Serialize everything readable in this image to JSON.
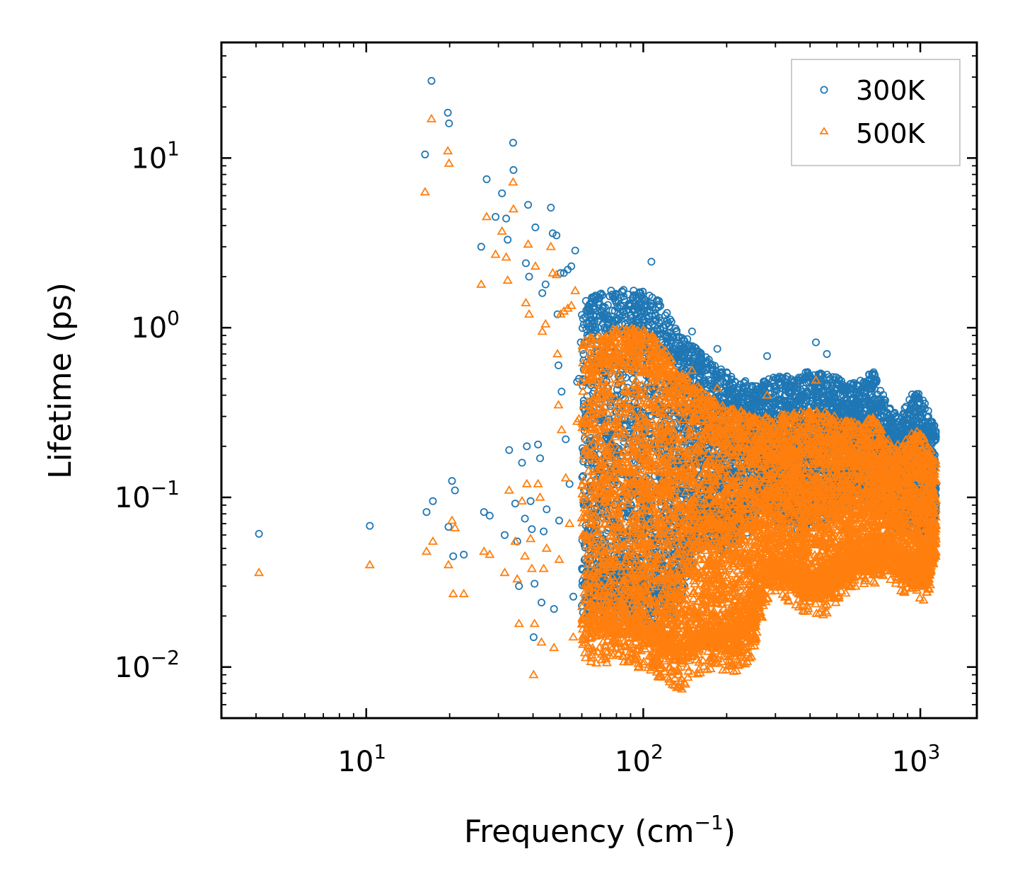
{
  "chart_data": {
    "type": "scatter",
    "xscale": "log",
    "yscale": "log",
    "xlabel": "Frequency (cm",
    "xlabel_sup": "−1",
    "xlabel_end": ")",
    "ylabel": "Lifetime (ps)",
    "xlim": [
      3.0,
      1600
    ],
    "ylim": [
      0.005,
      48
    ],
    "x_ticks": [
      {
        "value": 10,
        "base": "10",
        "exp": "1"
      },
      {
        "value": 100,
        "base": "10",
        "exp": "2"
      },
      {
        "value": 1000,
        "base": "10",
        "exp": "3"
      }
    ],
    "y_ticks": [
      {
        "value": 0.01,
        "base": "10",
        "exp": "−2"
      },
      {
        "value": 0.1,
        "base": "10",
        "exp": "−1"
      },
      {
        "value": 1,
        "base": "10",
        "exp": "0"
      },
      {
        "value": 10,
        "base": "10",
        "exp": "1"
      }
    ],
    "legend_position": "top-right",
    "series": [
      {
        "name": "300K",
        "marker": "circle",
        "color": "#1f77b4",
        "points": [
          [
            4.1,
            0.061
          ],
          [
            10.3,
            0.068
          ],
          [
            16.3,
            10.5
          ],
          [
            16.5,
            0.082
          ],
          [
            17.2,
            28.5
          ],
          [
            17.4,
            0.095
          ],
          [
            19.7,
            18.5
          ],
          [
            19.8,
            0.067
          ],
          [
            19.9,
            16.0
          ],
          [
            20.4,
            0.125
          ],
          [
            20.6,
            0.045
          ],
          [
            20.9,
            0.11
          ],
          [
            22.5,
            0.046
          ],
          [
            26.0,
            3.0
          ],
          [
            26.6,
            0.082
          ],
          [
            27.2,
            7.5
          ],
          [
            27.9,
            0.078
          ],
          [
            29.3,
            4.5
          ],
          [
            30.9,
            6.2
          ],
          [
            31.6,
            0.06
          ],
          [
            32.0,
            4.4
          ],
          [
            32.4,
            3.3
          ],
          [
            32.8,
            0.19
          ],
          [
            33.9,
            12.3
          ],
          [
            34.0,
            8.5
          ],
          [
            34.5,
            0.092
          ],
          [
            35.1,
            0.055
          ],
          [
            35.6,
            0.03
          ],
          [
            36.5,
            0.16
          ],
          [
            37.4,
            0.075
          ],
          [
            37.7,
            2.4
          ],
          [
            38.0,
            0.2
          ],
          [
            38.4,
            5.3
          ],
          [
            38.7,
            2.0
          ],
          [
            39.2,
            0.095
          ],
          [
            39.6,
            0.065
          ],
          [
            40.2,
            0.015
          ],
          [
            40.5,
            0.031
          ],
          [
            40.8,
            3.9
          ],
          [
            41.7,
            0.205
          ],
          [
            42.4,
            0.17
          ],
          [
            42.9,
            0.024
          ],
          [
            43.2,
            1.6
          ],
          [
            43.7,
            0.063
          ],
          [
            44.4,
            1.8
          ],
          [
            44.8,
            0.085
          ],
          [
            46.4,
            5.1
          ],
          [
            47.1,
            3.6
          ],
          [
            47.6,
            0.022
          ],
          [
            48.6,
            3.5
          ],
          [
            49.0,
            1.2
          ],
          [
            49.4,
            0.6
          ],
          [
            49.7,
            0.073
          ],
          [
            50.3,
            2.1
          ],
          [
            50.7,
            0.42
          ],
          [
            51.7,
            2.1
          ],
          [
            52.5,
            0.22
          ],
          [
            53.4,
            2.2
          ],
          [
            54.2,
            0.12
          ],
          [
            55.0,
            2.3
          ],
          [
            55.9,
            0.026
          ],
          [
            56.8,
            2.85
          ],
          [
            57.7,
            0.48
          ],
          [
            58.6,
            0.5
          ],
          [
            59.5,
            0.82
          ]
        ],
        "band": [
          [
            60,
            0.021,
            1.45
          ],
          [
            70,
            0.019,
            1.6
          ],
          [
            80,
            0.018,
            1.7
          ],
          [
            90,
            0.017,
            1.7
          ],
          [
            100,
            0.016,
            1.65
          ],
          [
            110,
            0.015,
            1.55
          ],
          [
            120,
            0.017,
            1.3
          ],
          [
            130,
            0.02,
            1.05
          ],
          [
            140,
            0.028,
            0.9
          ],
          [
            160,
            0.05,
            0.72
          ],
          [
            180,
            0.05,
            0.62
          ],
          [
            200,
            0.045,
            0.55
          ],
          [
            220,
            0.05,
            0.52
          ],
          [
            250,
            0.07,
            0.45
          ],
          [
            280,
            0.075,
            0.5
          ],
          [
            320,
            0.06,
            0.53
          ],
          [
            380,
            0.06,
            0.55
          ],
          [
            450,
            0.07,
            0.55
          ],
          [
            520,
            0.08,
            0.5
          ],
          [
            600,
            0.09,
            0.5
          ],
          [
            680,
            0.08,
            0.55
          ],
          [
            760,
            0.07,
            0.35
          ],
          [
            850,
            0.06,
            0.3
          ],
          [
            950,
            0.06,
            0.45
          ],
          [
            1050,
            0.05,
            0.35
          ],
          [
            1140,
            0.07,
            0.27
          ]
        ],
        "band_extra": [
          [
            107,
            2.45
          ],
          [
            420,
            0.82
          ],
          [
            460,
            0.7
          ],
          [
            280,
            0.68
          ],
          [
            185,
            0.75
          ],
          [
            150,
            0.95
          ]
        ]
      },
      {
        "name": "500K",
        "marker": "triangle",
        "color": "#ff7f0e",
        "points": [
          [
            4.1,
            0.036
          ],
          [
            10.3,
            0.04
          ],
          [
            16.3,
            6.3
          ],
          [
            16.5,
            0.048
          ],
          [
            17.2,
            17.0
          ],
          [
            17.4,
            0.055
          ],
          [
            19.7,
            11.0
          ],
          [
            19.8,
            0.04
          ],
          [
            19.9,
            9.3
          ],
          [
            20.4,
            0.073
          ],
          [
            20.6,
            0.027
          ],
          [
            20.9,
            0.066
          ],
          [
            22.5,
            0.027
          ],
          [
            26.0,
            1.8
          ],
          [
            26.6,
            0.048
          ],
          [
            27.2,
            4.5
          ],
          [
            27.9,
            0.046
          ],
          [
            29.3,
            2.7
          ],
          [
            30.9,
            3.7
          ],
          [
            31.6,
            0.036
          ],
          [
            32.0,
            2.6
          ],
          [
            32.4,
            1.9
          ],
          [
            32.8,
            0.11
          ],
          [
            33.9,
            7.2
          ],
          [
            34.0,
            5.0
          ],
          [
            34.5,
            0.055
          ],
          [
            35.1,
            0.033
          ],
          [
            35.6,
            0.018
          ],
          [
            36.5,
            0.095
          ],
          [
            37.4,
            0.045
          ],
          [
            37.7,
            1.4
          ],
          [
            38.0,
            0.12
          ],
          [
            38.4,
            3.1
          ],
          [
            38.7,
            1.2
          ],
          [
            39.2,
            0.057
          ],
          [
            39.6,
            0.038
          ],
          [
            40.2,
            0.009
          ],
          [
            40.5,
            0.018
          ],
          [
            40.8,
            2.3
          ],
          [
            41.7,
            0.12
          ],
          [
            42.4,
            0.1
          ],
          [
            42.9,
            0.014
          ],
          [
            43.2,
            0.95
          ],
          [
            43.7,
            0.038
          ],
          [
            44.4,
            1.05
          ],
          [
            44.8,
            0.05
          ],
          [
            46.4,
            3.0
          ],
          [
            47.1,
            2.1
          ],
          [
            47.6,
            0.013
          ],
          [
            48.6,
            2.05
          ],
          [
            49.0,
            0.7
          ],
          [
            49.4,
            0.35
          ],
          [
            49.7,
            0.043
          ],
          [
            50.3,
            1.2
          ],
          [
            50.7,
            0.25
          ],
          [
            51.7,
            1.25
          ],
          [
            52.5,
            0.13
          ],
          [
            53.4,
            1.3
          ],
          [
            54.2,
            0.07
          ],
          [
            55.0,
            1.35
          ],
          [
            55.9,
            0.015
          ],
          [
            56.8,
            1.65
          ],
          [
            57.7,
            0.28
          ],
          [
            58.6,
            0.29
          ],
          [
            59.5,
            0.48
          ]
        ],
        "band": [
          [
            60,
            0.0105,
            0.85
          ],
          [
            70,
            0.0105,
            0.92
          ],
          [
            80,
            0.0105,
            1.0
          ],
          [
            90,
            0.0105,
            1.0
          ],
          [
            100,
            0.0095,
            0.98
          ],
          [
            110,
            0.0085,
            0.9
          ],
          [
            120,
            0.008,
            0.75
          ],
          [
            130,
            0.0075,
            0.62
          ],
          [
            140,
            0.0072,
            0.55
          ],
          [
            160,
            0.009,
            0.45
          ],
          [
            180,
            0.0095,
            0.38
          ],
          [
            200,
            0.0092,
            0.34
          ],
          [
            220,
            0.009,
            0.33
          ],
          [
            250,
            0.012,
            0.3
          ],
          [
            280,
            0.025,
            0.3
          ],
          [
            320,
            0.026,
            0.31
          ],
          [
            380,
            0.02,
            0.33
          ],
          [
            450,
            0.02,
            0.32
          ],
          [
            520,
            0.025,
            0.29
          ],
          [
            600,
            0.03,
            0.28
          ],
          [
            680,
            0.03,
            0.3
          ],
          [
            760,
            0.034,
            0.22
          ],
          [
            850,
            0.028,
            0.2
          ],
          [
            950,
            0.025,
            0.26
          ],
          [
            1050,
            0.024,
            0.22
          ],
          [
            1140,
            0.04,
            0.17
          ]
        ],
        "band_extra": [
          [
            420,
            0.49
          ],
          [
            280,
            0.4
          ],
          [
            185,
            0.44
          ],
          [
            150,
            0.56
          ]
        ]
      }
    ]
  }
}
